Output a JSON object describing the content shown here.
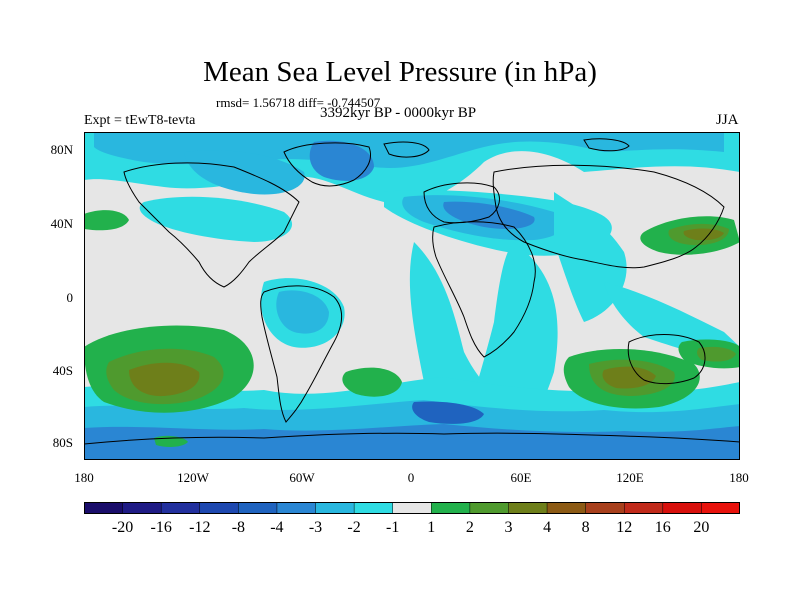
{
  "title": "Mean Sea Level Pressure (in hPa)",
  "stats": "rmsd= 1.56718  diff= -0.744507",
  "experiment": "Expt = tEwT8-tevta",
  "period": "3392kyr BP - 0000kyr BP",
  "season": "JJA",
  "lat_labels": [
    "80N",
    "40N",
    "0",
    "40S",
    "80S"
  ],
  "lon_labels": [
    "180",
    "120W",
    "60W",
    "0",
    "60E",
    "120E",
    "180"
  ],
  "colorbar": {
    "labels": [
      "-20",
      "-16",
      "-12",
      "-8",
      "-4",
      "-3",
      "-2",
      "-1",
      "1",
      "2",
      "3",
      "4",
      "8",
      "12",
      "16",
      "20"
    ],
    "colors": [
      "#1a0d6b",
      "#1f1b85",
      "#22309e",
      "#1e48b0",
      "#1f63bf",
      "#2a86d3",
      "#29b7df",
      "#2fdce3",
      "#e6e6e6",
      "#22b14c",
      "#4f9a2e",
      "#6e7f1a",
      "#8c5a14",
      "#a8401c",
      "#c12a1a",
      "#d8100c",
      "#e8120c"
    ]
  },
  "colors": {
    "land_line": "#000000",
    "neutral": "#e6e6e6"
  }
}
